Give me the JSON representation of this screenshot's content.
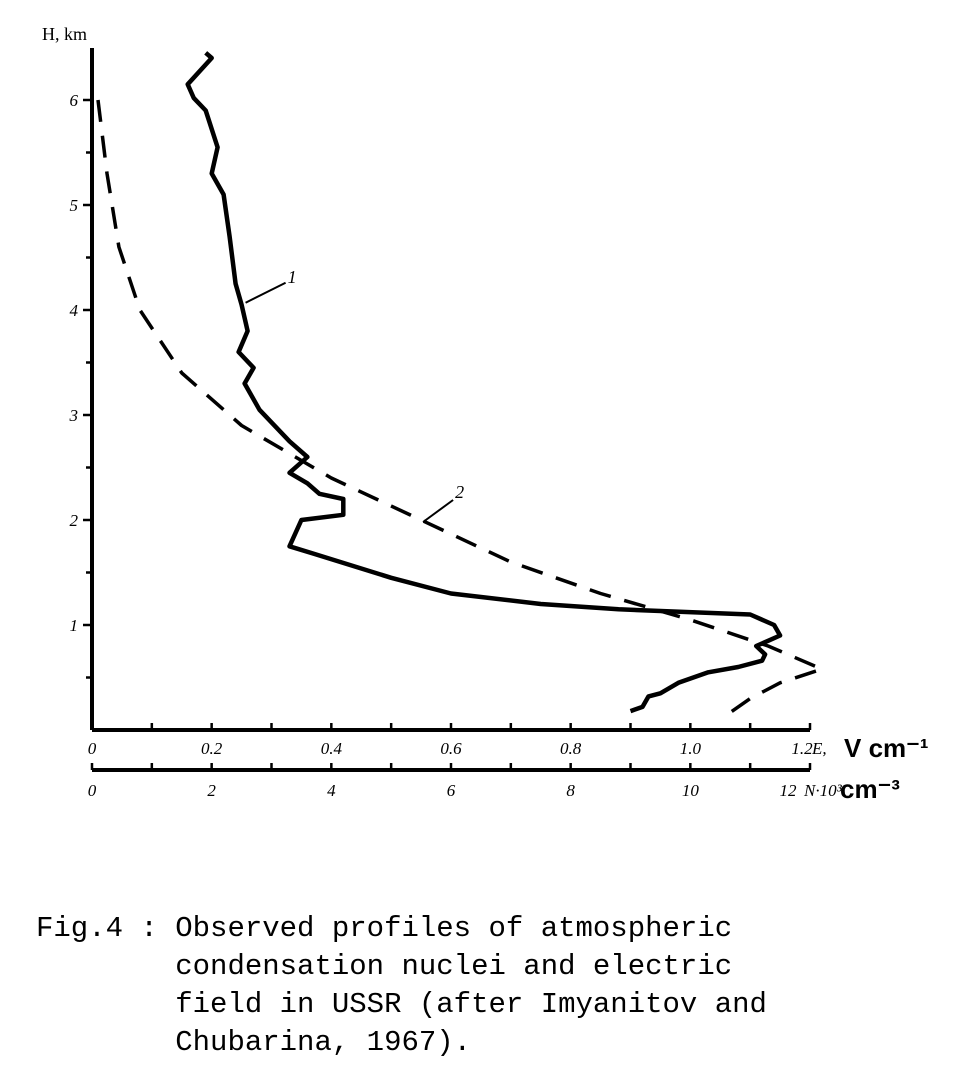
{
  "chart_data": {
    "type": "line",
    "y_axis": {
      "label": "H, km",
      "ticks": [
        "1",
        "2",
        "3",
        "4",
        "5",
        "6"
      ],
      "ylim": [
        0,
        6.4
      ]
    },
    "x_axis_E": {
      "ticks": [
        "0",
        "0.2",
        "0.4",
        "0.6",
        "0.8",
        "1.0",
        "1.2"
      ],
      "label": "E,",
      "unit": "V cm⁻¹",
      "xlim": [
        0,
        1.2
      ]
    },
    "x_axis_N": {
      "ticks": [
        "0",
        "2",
        "4",
        "6",
        "8",
        "10",
        "12"
      ],
      "label": "N·10³",
      "unit": "cm⁻³",
      "xlim": [
        0,
        12
      ]
    },
    "series": [
      {
        "id": "1",
        "axis": "E",
        "style": "solid",
        "points": [
          [
            0.19,
            6.45
          ],
          [
            0.2,
            6.4
          ],
          [
            0.16,
            6.15
          ],
          [
            0.17,
            6.02
          ],
          [
            0.19,
            5.9
          ],
          [
            0.21,
            5.55
          ],
          [
            0.2,
            5.3
          ],
          [
            0.22,
            5.1
          ],
          [
            0.23,
            4.7
          ],
          [
            0.24,
            4.25
          ],
          [
            0.25,
            4.05
          ],
          [
            0.26,
            3.8
          ],
          [
            0.245,
            3.6
          ],
          [
            0.27,
            3.45
          ],
          [
            0.255,
            3.3
          ],
          [
            0.28,
            3.05
          ],
          [
            0.33,
            2.75
          ],
          [
            0.36,
            2.6
          ],
          [
            0.33,
            2.45
          ],
          [
            0.36,
            2.35
          ],
          [
            0.38,
            2.25
          ],
          [
            0.42,
            2.2
          ],
          [
            0.42,
            2.05
          ],
          [
            0.35,
            2.0
          ],
          [
            0.33,
            1.75
          ],
          [
            0.37,
            1.68
          ],
          [
            0.5,
            1.45
          ],
          [
            0.6,
            1.3
          ],
          [
            0.75,
            1.2
          ],
          [
            0.88,
            1.15
          ],
          [
            1.1,
            1.1
          ],
          [
            1.14,
            1.0
          ],
          [
            1.15,
            0.9
          ],
          [
            1.13,
            0.85
          ],
          [
            1.11,
            0.8
          ],
          [
            1.125,
            0.72
          ],
          [
            1.12,
            0.66
          ],
          [
            1.08,
            0.6
          ],
          [
            1.03,
            0.55
          ],
          [
            0.98,
            0.45
          ],
          [
            0.95,
            0.35
          ],
          [
            0.93,
            0.32
          ],
          [
            0.92,
            0.22
          ],
          [
            0.9,
            0.18
          ]
        ]
      },
      {
        "id": "2",
        "axis": "N",
        "style": "dashed",
        "points": [
          [
            0.1,
            6.0
          ],
          [
            0.25,
            5.3
          ],
          [
            0.45,
            4.6
          ],
          [
            0.8,
            4.0
          ],
          [
            1.5,
            3.4
          ],
          [
            2.5,
            2.9
          ],
          [
            4.0,
            2.4
          ],
          [
            5.5,
            2.0
          ],
          [
            7.0,
            1.6
          ],
          [
            8.5,
            1.3
          ],
          [
            10.0,
            1.05
          ],
          [
            11.3,
            0.8
          ],
          [
            12.2,
            0.58
          ],
          [
            11.5,
            0.45
          ],
          [
            11.0,
            0.3
          ],
          [
            10.6,
            0.14
          ]
        ]
      }
    ]
  },
  "caption": {
    "lead": "Fig.4 : ",
    "lines": [
      "Observed profiles of atmospheric",
      "condensation nuclei and electric",
      "field in USSR (after Imyanitov and",
      "Chubarina, 1967)."
    ]
  }
}
